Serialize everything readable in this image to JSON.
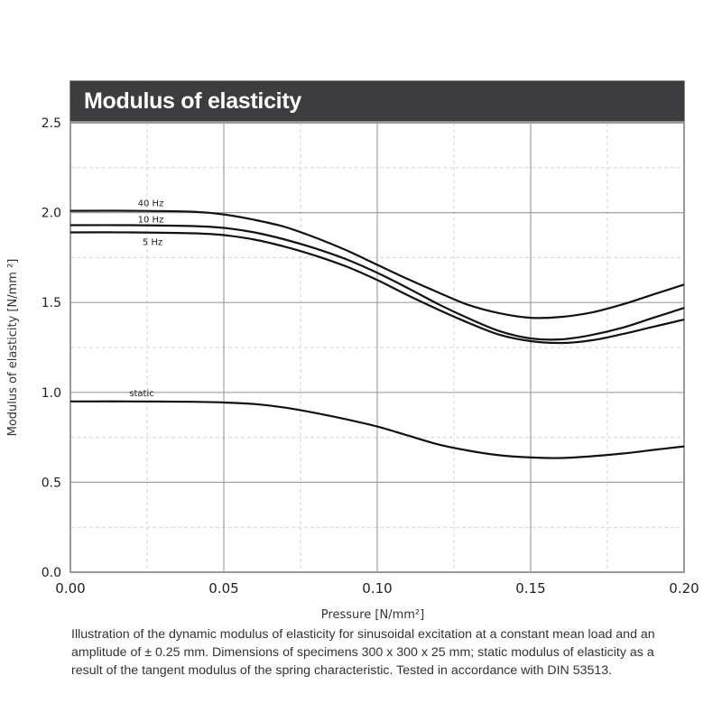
{
  "chart_data": {
    "type": "line",
    "title": "Modulus of elasticity",
    "xlabel": "Pressure [N/mm²]",
    "ylabel": "Modulus of elasticity  [N/mm ²]",
    "xlim": [
      0.0,
      0.2
    ],
    "ylim": [
      0.0,
      2.5
    ],
    "x_ticks": [
      "0.00",
      "0.05",
      "0.10",
      "0.15",
      "0.20"
    ],
    "y_ticks": [
      "0.0",
      "0.5",
      "1.0",
      "1.5",
      "2.0",
      "2.5"
    ],
    "grid": true,
    "legend": "inline labels",
    "series": [
      {
        "name": "40 Hz",
        "x": [
          0.0,
          0.02,
          0.04,
          0.05,
          0.06,
          0.07,
          0.08,
          0.09,
          0.1,
          0.11,
          0.12,
          0.13,
          0.14,
          0.15,
          0.16,
          0.17,
          0.18,
          0.19,
          0.2
        ],
        "values": [
          2.01,
          2.01,
          2.005,
          1.99,
          1.96,
          1.92,
          1.86,
          1.79,
          1.71,
          1.63,
          1.555,
          1.485,
          1.44,
          1.415,
          1.42,
          1.445,
          1.49,
          1.545,
          1.6
        ]
      },
      {
        "name": "10 Hz",
        "x": [
          0.0,
          0.02,
          0.04,
          0.05,
          0.06,
          0.07,
          0.08,
          0.09,
          0.1,
          0.11,
          0.12,
          0.13,
          0.14,
          0.15,
          0.16,
          0.17,
          0.18,
          0.19,
          0.2
        ],
        "values": [
          1.93,
          1.93,
          1.925,
          1.915,
          1.89,
          1.85,
          1.8,
          1.74,
          1.665,
          1.58,
          1.49,
          1.41,
          1.34,
          1.3,
          1.295,
          1.32,
          1.36,
          1.415,
          1.47
        ]
      },
      {
        "name": "5 Hz",
        "x": [
          0.0,
          0.02,
          0.04,
          0.05,
          0.06,
          0.07,
          0.08,
          0.09,
          0.1,
          0.11,
          0.12,
          0.13,
          0.14,
          0.15,
          0.16,
          0.17,
          0.18,
          0.19,
          0.2
        ],
        "values": [
          1.89,
          1.89,
          1.885,
          1.875,
          1.85,
          1.81,
          1.76,
          1.7,
          1.625,
          1.54,
          1.46,
          1.385,
          1.32,
          1.285,
          1.275,
          1.29,
          1.325,
          1.365,
          1.405
        ]
      },
      {
        "name": "static",
        "x": [
          0.0,
          0.02,
          0.04,
          0.05,
          0.06,
          0.07,
          0.08,
          0.09,
          0.1,
          0.11,
          0.12,
          0.13,
          0.14,
          0.15,
          0.16,
          0.17,
          0.18,
          0.19,
          0.2
        ],
        "values": [
          0.95,
          0.95,
          0.948,
          0.944,
          0.935,
          0.915,
          0.885,
          0.85,
          0.81,
          0.76,
          0.71,
          0.675,
          0.65,
          0.638,
          0.635,
          0.645,
          0.66,
          0.68,
          0.7
        ]
      }
    ]
  },
  "caption": "Illustration of the dynamic modulus of elasticity for sinusoidal excitation at a constant mean load and an amplitude of ± 0.25 mm. Dimensions of specimens 300 x 300 x 25 mm; static modulus of elasticity as a  result of the tangent modulus of the spring characteristic. Tested in accordance with DIN 53513.",
  "colors": {
    "title_bg": "#3d3d3f",
    "title_text": "#ffffff",
    "line": "#111111",
    "grid_major": "#a0a0a0",
    "grid_minor": "#d4d4d4"
  }
}
